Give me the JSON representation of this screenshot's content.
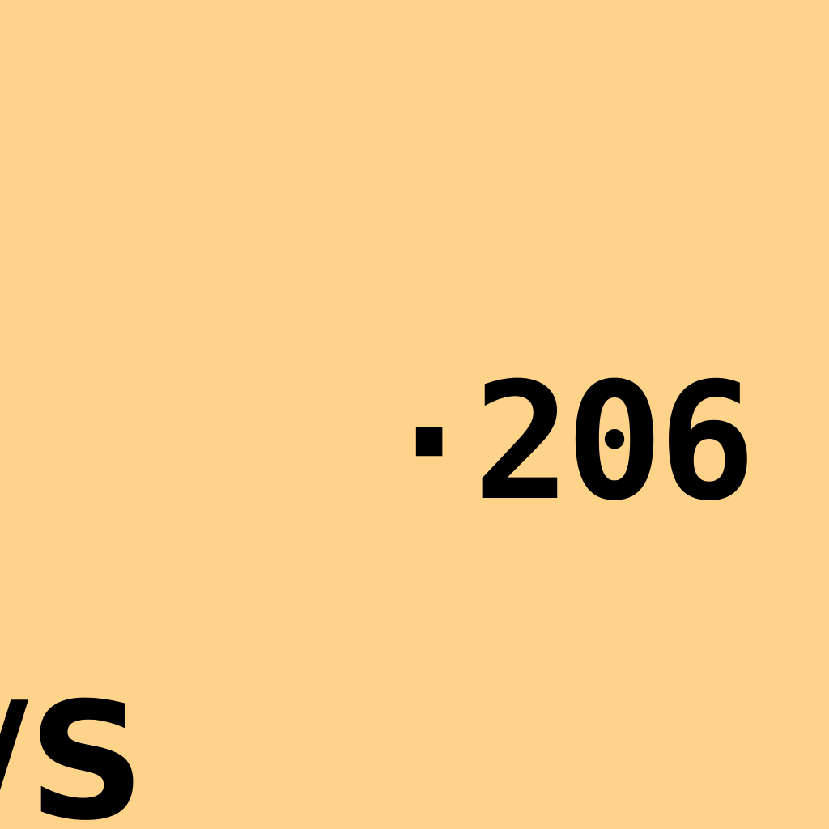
{
  "screen": {
    "background_color": "#FFD48A",
    "text_color": "#000000"
  },
  "readout": {
    "text": "·206"
  },
  "corner_fragment": {
    "text": "/S"
  }
}
